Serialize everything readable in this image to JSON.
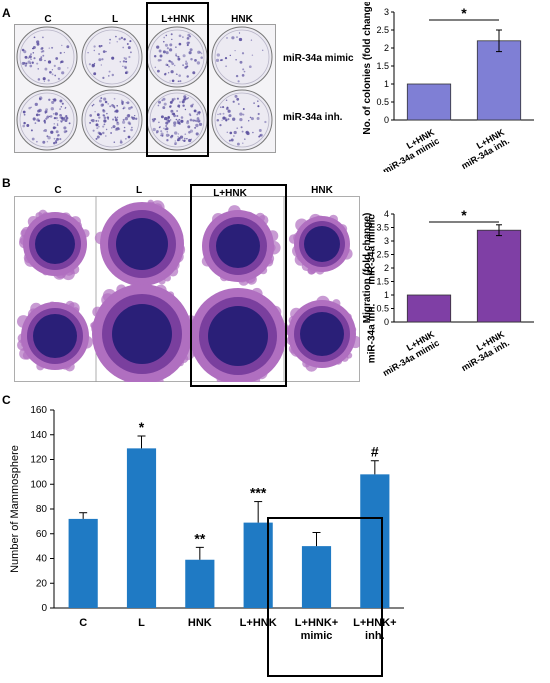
{
  "panel_a": {
    "label": "A",
    "columns": [
      "C",
      "L",
      "L+HNK",
      "HNK"
    ],
    "rows": [
      "miR-34a mimic",
      "miR-34a inh."
    ]
  },
  "panel_b": {
    "label": "B",
    "columns": [
      "C",
      "L",
      "L+HNK",
      "HNK"
    ],
    "rows": [
      "miR-34a mimic",
      "miR-34a inh."
    ]
  },
  "panel_c": {
    "label": "C"
  },
  "colors": {
    "plate_bg": "#eceaf2",
    "plate_dots": "#5a4f9e",
    "spheroid_outer": "#b06fc0",
    "spheroid_core": "#2a1f78",
    "bar_a": "#7f7fd5",
    "bar_b": "#7f3fa5",
    "bar_c": "#1f7ac4"
  },
  "chart_data": [
    {
      "type": "bar",
      "categories": [
        "L+HNK\nmiR-34a mimic",
        "L+HNK\nmiR-34a inh."
      ],
      "values": [
        1.0,
        2.2
      ],
      "errors": [
        0,
        0.3
      ],
      "ylabel": "No. of colonies (fold change)",
      "ylim": [
        0,
        3
      ],
      "yticks": [
        "0",
        "0.5",
        "1",
        "1.5",
        "2",
        "2.5",
        "3"
      ],
      "annotation": "*"
    },
    {
      "type": "bar",
      "categories": [
        "L+HNK\nmiR-34a mimic",
        "L+HNK\nmiR-34a inh."
      ],
      "values": [
        1.0,
        3.4
      ],
      "errors": [
        0,
        0.2
      ],
      "ylabel": "Migration (fold change)",
      "ylim": [
        0,
        4
      ],
      "yticks": [
        "0",
        "0.5",
        "1",
        "1.5",
        "2",
        "2.5",
        "3",
        "3.5",
        "4"
      ],
      "annotation": "*"
    },
    {
      "type": "bar",
      "categories": [
        "C",
        "L",
        "HNK",
        "L+HNK",
        "L+HNK+\nmimic",
        "L+HNK+\ninh."
      ],
      "values": [
        72,
        129,
        39,
        69,
        50,
        108
      ],
      "errors": [
        5,
        10,
        10,
        17,
        11,
        11
      ],
      "significance": [
        "",
        "*",
        "**",
        "***",
        "",
        "#"
      ],
      "ylabel": "Number of Mammosphere",
      "ylim": [
        0,
        160
      ],
      "yticks": [
        "0",
        "20",
        "40",
        "60",
        "80",
        "100",
        "120",
        "140",
        "160"
      ]
    }
  ]
}
